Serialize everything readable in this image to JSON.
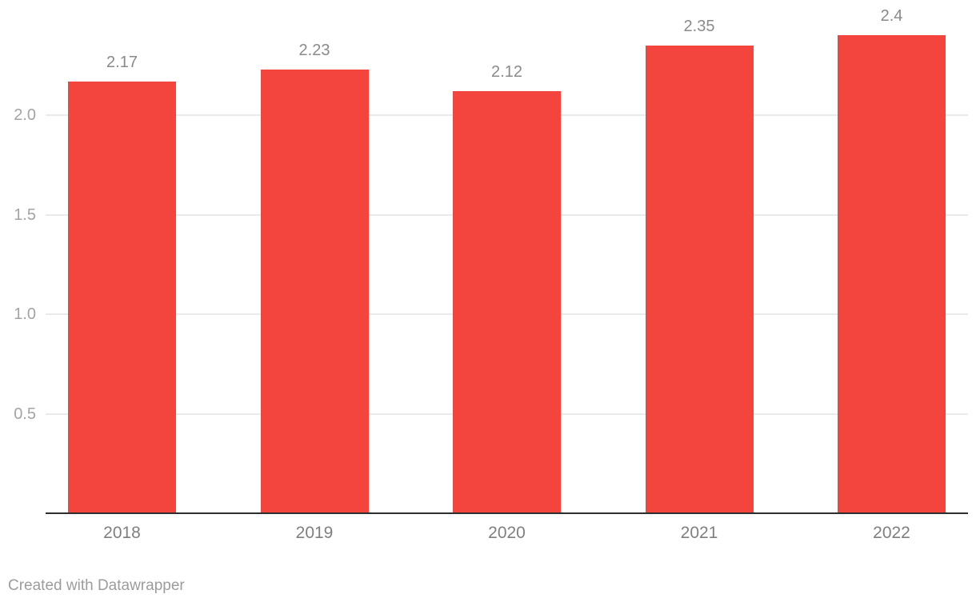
{
  "chart": {
    "attribution": "Created with Datawrapper"
  },
  "chart_data": {
    "type": "bar",
    "title": "",
    "xlabel": "",
    "ylabel": "",
    "categories": [
      "2018",
      "2019",
      "2020",
      "2021",
      "2022"
    ],
    "values": [
      2.17,
      2.23,
      2.12,
      2.35,
      2.4
    ],
    "value_labels": [
      "2.17",
      "2.23",
      "2.12",
      "2.35",
      "2.4"
    ],
    "y_ticks": [
      0.5,
      1.0,
      1.5,
      2.0
    ],
    "y_tick_labels": [
      "0.5",
      "1.0",
      "1.5",
      "2.0"
    ],
    "ylim": [
      0,
      2.4
    ],
    "grid": true,
    "legend_position": "none",
    "colors": {
      "bar": "#f4443e",
      "gridline": "#eaeaea",
      "axis_line": "#2e2e2e",
      "tick_label": "#a4a4a4",
      "value_label": "#8a8a8a",
      "category_label": "#7f7f7f",
      "attribution": "#9c9c9c",
      "background": "#ffffff"
    }
  }
}
